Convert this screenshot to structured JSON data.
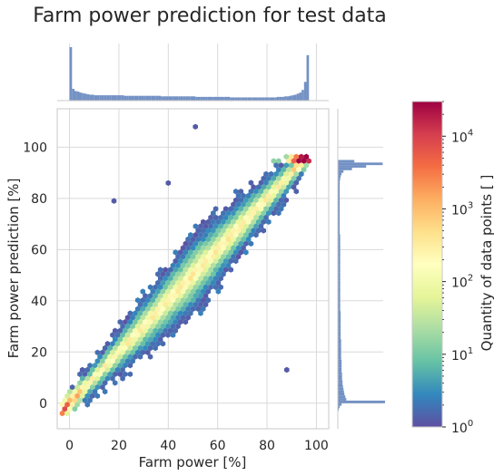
{
  "chart_data": {
    "type": "heatmap",
    "title": "Farm power prediction for test data",
    "xlabel": "Farm power [%]",
    "ylabel": "Farm power prediction [%]",
    "xlim": [
      -5,
      105
    ],
    "ylim": [
      -10,
      115
    ],
    "x_ticks": [
      0,
      20,
      40,
      60,
      80,
      100
    ],
    "y_ticks": [
      0,
      20,
      40,
      60,
      80,
      100
    ],
    "grid": true,
    "colorbar": {
      "label": "Quantity of data points [ ]",
      "scale": "log",
      "range": [
        1,
        30000
      ],
      "ticks": [
        {
          "base": "10",
          "exp": "0",
          "value": 1
        },
        {
          "base": "10",
          "exp": "1",
          "value": 10
        },
        {
          "base": "10",
          "exp": "2",
          "value": 100
        },
        {
          "base": "10",
          "exp": "3",
          "value": 1000
        },
        {
          "base": "10",
          "exp": "4",
          "value": 10000
        }
      ],
      "colormap": "Spectral_r",
      "colors": [
        "#5e4fa2",
        "#3288bd",
        "#66c2a5",
        "#abdda4",
        "#e6f598",
        "#ffffbf",
        "#fee08b",
        "#fdae61",
        "#f46d43",
        "#d53e4f",
        "#9e0142"
      ]
    },
    "trend": {
      "x": [
        0,
        20,
        40,
        60,
        80,
        96
      ],
      "y": [
        0,
        20,
        40,
        60,
        80,
        96
      ],
      "prediction_cap": 96
    },
    "outliers": [
      {
        "x": 18,
        "y": 79
      },
      {
        "x": 51,
        "y": 108
      },
      {
        "x": 88,
        "y": 13
      },
      {
        "x": 40,
        "y": 86
      }
    ],
    "top_histogram": {
      "variable": "Farm power [%]",
      "bin_edges_start": 0,
      "bin_width": 1,
      "relative_heights": [
        1.0,
        0.22,
        0.18,
        0.17,
        0.15,
        0.14,
        0.13,
        0.12,
        0.11,
        0.11,
        0.1,
        0.1,
        0.1,
        0.1,
        0.1,
        0.1,
        0.1,
        0.1,
        0.1,
        0.1,
        0.1,
        0.1,
        0.09,
        0.09,
        0.09,
        0.09,
        0.09,
        0.09,
        0.09,
        0.09,
        0.09,
        0.09,
        0.09,
        0.09,
        0.09,
        0.09,
        0.09,
        0.08,
        0.08,
        0.08,
        0.08,
        0.08,
        0.08,
        0.08,
        0.08,
        0.08,
        0.08,
        0.08,
        0.08,
        0.08,
        0.08,
        0.07,
        0.07,
        0.07,
        0.07,
        0.07,
        0.07,
        0.07,
        0.07,
        0.07,
        0.07,
        0.07,
        0.07,
        0.07,
        0.07,
        0.06,
        0.06,
        0.06,
        0.06,
        0.06,
        0.06,
        0.06,
        0.06,
        0.06,
        0.06,
        0.06,
        0.06,
        0.06,
        0.06,
        0.06,
        0.06,
        0.06,
        0.06,
        0.06,
        0.07,
        0.07,
        0.07,
        0.08,
        0.08,
        0.09,
        0.1,
        0.11,
        0.13,
        0.15,
        0.2,
        0.35,
        0.85
      ]
    },
    "right_histogram": {
      "variable": "Farm power prediction [%]",
      "bin_edges_start": -3,
      "bin_width": 1,
      "relative_heights": [
        0.02,
        0.04,
        0.08,
        1.0,
        0.18,
        0.16,
        0.14,
        0.13,
        0.12,
        0.11,
        0.1,
        0.1,
        0.09,
        0.09,
        0.09,
        0.08,
        0.08,
        0.08,
        0.08,
        0.08,
        0.07,
        0.07,
        0.07,
        0.07,
        0.07,
        0.07,
        0.07,
        0.07,
        0.06,
        0.06,
        0.06,
        0.06,
        0.06,
        0.06,
        0.06,
        0.06,
        0.06,
        0.06,
        0.06,
        0.05,
        0.05,
        0.05,
        0.05,
        0.05,
        0.05,
        0.05,
        0.05,
        0.05,
        0.05,
        0.05,
        0.05,
        0.05,
        0.05,
        0.05,
        0.05,
        0.05,
        0.05,
        0.05,
        0.05,
        0.05,
        0.05,
        0.05,
        0.05,
        0.05,
        0.05,
        0.05,
        0.05,
        0.05,
        0.05,
        0.04,
        0.04,
        0.04,
        0.04,
        0.04,
        0.04,
        0.04,
        0.04,
        0.04,
        0.04,
        0.04,
        0.04,
        0.04,
        0.04,
        0.04,
        0.04,
        0.04,
        0.04,
        0.04,
        0.04,
        0.04,
        0.05,
        0.06,
        0.08,
        0.12,
        0.3,
        0.6,
        0.95,
        0.35
      ]
    }
  }
}
